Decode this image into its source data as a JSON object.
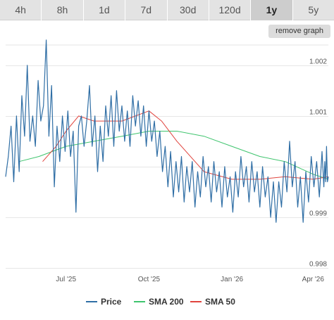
{
  "range_tabs": [
    {
      "label": "4h",
      "active": false
    },
    {
      "label": "8h",
      "active": false
    },
    {
      "label": "1d",
      "active": false
    },
    {
      "label": "7d",
      "active": false
    },
    {
      "label": "30d",
      "active": false
    },
    {
      "label": "120d",
      "active": false
    },
    {
      "label": "1y",
      "active": true
    },
    {
      "label": "5y",
      "active": false
    }
  ],
  "remove_graph_label": "remove graph",
  "chart_data": {
    "type": "line",
    "title": "",
    "xlabel": "",
    "ylabel": "",
    "ylim": [
      0.998,
      1.0024
    ],
    "x_range": [
      "2025-04-25",
      "2026-04-18"
    ],
    "y_ticks": [
      {
        "value": 0.998,
        "label": "0.998"
      },
      {
        "value": 0.999,
        "label": "0.999"
      },
      {
        "value": 1.0,
        "label": ""
      },
      {
        "value": 1.001,
        "label": "1.001"
      },
      {
        "value": 1.002,
        "label": "1.002"
      }
    ],
    "x_ticks": [
      {
        "date": "2025-07-01",
        "label": "Jul '25"
      },
      {
        "date": "2025-10-01",
        "label": "Oct '25"
      },
      {
        "date": "2026-01-01",
        "label": "Jan '26"
      },
      {
        "date": "2026-04-01",
        "label": "Apr '26"
      }
    ],
    "grid": true,
    "legend_position": "bottom",
    "series": [
      {
        "name": "Price",
        "color": "#2f6ea5",
        "points": [
          [
            "2025-04-25",
            0.9998
          ],
          [
            "2025-04-28",
            1.0002
          ],
          [
            "2025-05-01",
            1.0008
          ],
          [
            "2025-05-04",
            0.9997
          ],
          [
            "2025-05-07",
            1.001
          ],
          [
            "2025-05-10",
            0.9999
          ],
          [
            "2025-05-13",
            1.0014
          ],
          [
            "2025-05-16",
            1.0006
          ],
          [
            "2025-05-19",
            1.002
          ],
          [
            "2025-05-22",
            1.0005
          ],
          [
            "2025-05-25",
            1.001
          ],
          [
            "2025-05-28",
            1.0004
          ],
          [
            "2025-05-31",
            1.0017
          ],
          [
            "2025-06-03",
            1.0009
          ],
          [
            "2025-06-06",
            1.0012
          ],
          [
            "2025-06-09",
            1.0025
          ],
          [
            "2025-06-12",
            1.0006
          ],
          [
            "2025-06-15",
            1.0016
          ],
          [
            "2025-06-18",
            0.9996
          ],
          [
            "2025-06-21",
            1.0008
          ],
          [
            "2025-06-24",
            1.0001
          ],
          [
            "2025-06-27",
            1.001
          ],
          [
            "2025-06-30",
            1.0003
          ],
          [
            "2025-07-03",
            1.0011
          ],
          [
            "2025-07-06",
            1.0002
          ],
          [
            "2025-07-09",
            1.0007
          ],
          [
            "2025-07-12",
            0.9991
          ],
          [
            "2025-07-15",
            1.0008
          ],
          [
            "2025-07-18",
            1.001
          ],
          [
            "2025-07-21",
            1.0004
          ],
          [
            "2025-07-24",
            1.0009
          ],
          [
            "2025-07-27",
            1.0016
          ],
          [
            "2025-07-30",
            1.0004
          ],
          [
            "2025-08-02",
            1.001
          ],
          [
            "2025-08-05",
            0.9999
          ],
          [
            "2025-08-08",
            1.0008
          ],
          [
            "2025-08-11",
            1.0001
          ],
          [
            "2025-08-14",
            1.0012
          ],
          [
            "2025-08-17",
            1.0006
          ],
          [
            "2025-08-20",
            1.0014
          ],
          [
            "2025-08-23",
            1.0004
          ],
          [
            "2025-08-26",
            1.0015
          ],
          [
            "2025-08-29",
            1.0007
          ],
          [
            "2025-09-01",
            1.0012
          ],
          [
            "2025-09-04",
            1.0005
          ],
          [
            "2025-09-07",
            1.0011
          ],
          [
            "2025-09-10",
            1.0004
          ],
          [
            "2025-09-13",
            1.0014
          ],
          [
            "2025-09-16",
            1.0008
          ],
          [
            "2025-09-19",
            1.0013
          ],
          [
            "2025-09-22",
            1.0006
          ],
          [
            "2025-09-25",
            1.0012
          ],
          [
            "2025-09-28",
            1.0004
          ],
          [
            "2025-10-01",
            1.0011
          ],
          [
            "2025-10-04",
            1.0005
          ],
          [
            "2025-10-07",
            1.0009
          ],
          [
            "2025-10-10",
            1.0002
          ],
          [
            "2025-10-13",
            1.0007
          ],
          [
            "2025-10-16",
            0.9999
          ],
          [
            "2025-10-19",
            1.0004
          ],
          [
            "2025-10-22",
            0.9996
          ],
          [
            "2025-10-25",
            1.0003
          ],
          [
            "2025-10-28",
            0.9994
          ],
          [
            "2025-10-31",
            1.0001
          ],
          [
            "2025-11-03",
            0.9995
          ],
          [
            "2025-11-06",
            1.0002
          ],
          [
            "2025-11-09",
            0.9993
          ],
          [
            "2025-11-12",
            1.0
          ],
          [
            "2025-11-15",
            0.9995
          ],
          [
            "2025-11-18",
            1.0001
          ],
          [
            "2025-11-21",
            0.9992
          ],
          [
            "2025-11-24",
            0.9999
          ],
          [
            "2025-11-27",
            0.9994
          ],
          [
            "2025-11-30",
            1.0002
          ],
          [
            "2025-12-03",
            0.9996
          ],
          [
            "2025-12-06",
            1.0
          ],
          [
            "2025-12-09",
            0.9993
          ],
          [
            "2025-12-12",
            1.0001
          ],
          [
            "2025-12-15",
            0.9995
          ],
          [
            "2025-12-18",
            0.9999
          ],
          [
            "2025-12-21",
            0.9992
          ],
          [
            "2025-12-24",
            1.0
          ],
          [
            "2025-12-27",
            0.9994
          ],
          [
            "2025-12-30",
            0.9998
          ],
          [
            "2026-01-02",
            0.9991
          ],
          [
            "2026-01-05",
            0.9999
          ],
          [
            "2026-01-08",
            0.9994
          ],
          [
            "2026-01-11",
            1.0002
          ],
          [
            "2026-01-14",
            0.9996
          ],
          [
            "2026-01-17",
            1.0
          ],
          [
            "2026-01-20",
            0.9993
          ],
          [
            "2026-01-23",
            1.0001
          ],
          [
            "2026-01-26",
            0.9995
          ],
          [
            "2026-01-29",
            0.9999
          ],
          [
            "2026-02-01",
            0.9992
          ],
          [
            "2026-02-04",
            1.0
          ],
          [
            "2026-02-07",
            0.9994
          ],
          [
            "2026-02-10",
            0.9998
          ],
          [
            "2026-02-13",
            0.999
          ],
          [
            "2026-02-16",
            0.9997
          ],
          [
            "2026-02-19",
            0.9989
          ],
          [
            "2026-02-22",
            0.9997
          ],
          [
            "2026-02-25",
            0.9992
          ],
          [
            "2026-02-28",
            1.0001
          ],
          [
            "2026-03-03",
            0.9995
          ],
          [
            "2026-03-06",
            1.0005
          ],
          [
            "2026-03-09",
            0.9996
          ],
          [
            "2026-03-12",
            1.0001
          ],
          [
            "2026-03-15",
            0.9992
          ],
          [
            "2026-03-18",
            0.9998
          ],
          [
            "2026-03-21",
            0.9989
          ],
          [
            "2026-03-24",
            0.9999
          ],
          [
            "2026-03-27",
            0.9993
          ],
          [
            "2026-03-30",
            1.0002
          ],
          [
            "2026-04-02",
            0.9996
          ],
          [
            "2026-04-05",
            1.0001
          ],
          [
            "2026-04-08",
            0.9994
          ],
          [
            "2026-04-11",
            1.0003
          ],
          [
            "2026-04-13",
            0.9996
          ],
          [
            "2026-04-14",
            1.0001
          ],
          [
            "2026-04-15",
            0.9997
          ],
          [
            "2026-04-16",
            1.0004
          ],
          [
            "2026-04-17",
            0.9997
          ],
          [
            "2026-04-18",
            0.9998
          ]
        ]
      },
      {
        "name": "SMA 200",
        "color": "#3ec46d",
        "points": [
          [
            "2025-05-10",
            1.0001
          ],
          [
            "2025-06-01",
            1.0002
          ],
          [
            "2025-07-01",
            1.0004
          ],
          [
            "2025-08-01",
            1.0005
          ],
          [
            "2025-09-01",
            1.0006
          ],
          [
            "2025-10-01",
            1.0007
          ],
          [
            "2025-11-01",
            1.0007
          ],
          [
            "2025-12-01",
            1.0006
          ],
          [
            "2026-01-01",
            1.0004
          ],
          [
            "2026-02-01",
            1.0002
          ],
          [
            "2026-03-01",
            1.0001
          ],
          [
            "2026-04-01",
            0.99985
          ],
          [
            "2026-04-18",
            0.99975
          ]
        ]
      },
      {
        "name": "SMA 50",
        "color": "#e0443e",
        "points": [
          [
            "2025-06-05",
            1.0001
          ],
          [
            "2025-06-20",
            1.0004
          ],
          [
            "2025-07-01",
            1.0007
          ],
          [
            "2025-07-15",
            1.001
          ],
          [
            "2025-08-01",
            1.0009
          ],
          [
            "2025-09-01",
            1.0009
          ],
          [
            "2025-10-01",
            1.0011
          ],
          [
            "2025-10-15",
            1.0009
          ],
          [
            "2025-11-01",
            1.0005
          ],
          [
            "2025-12-01",
            0.9999
          ],
          [
            "2026-01-01",
            0.99975
          ],
          [
            "2026-02-01",
            0.99975
          ],
          [
            "2026-03-01",
            0.9998
          ],
          [
            "2026-04-01",
            0.99975
          ],
          [
            "2026-04-18",
            0.9998
          ]
        ]
      }
    ]
  }
}
